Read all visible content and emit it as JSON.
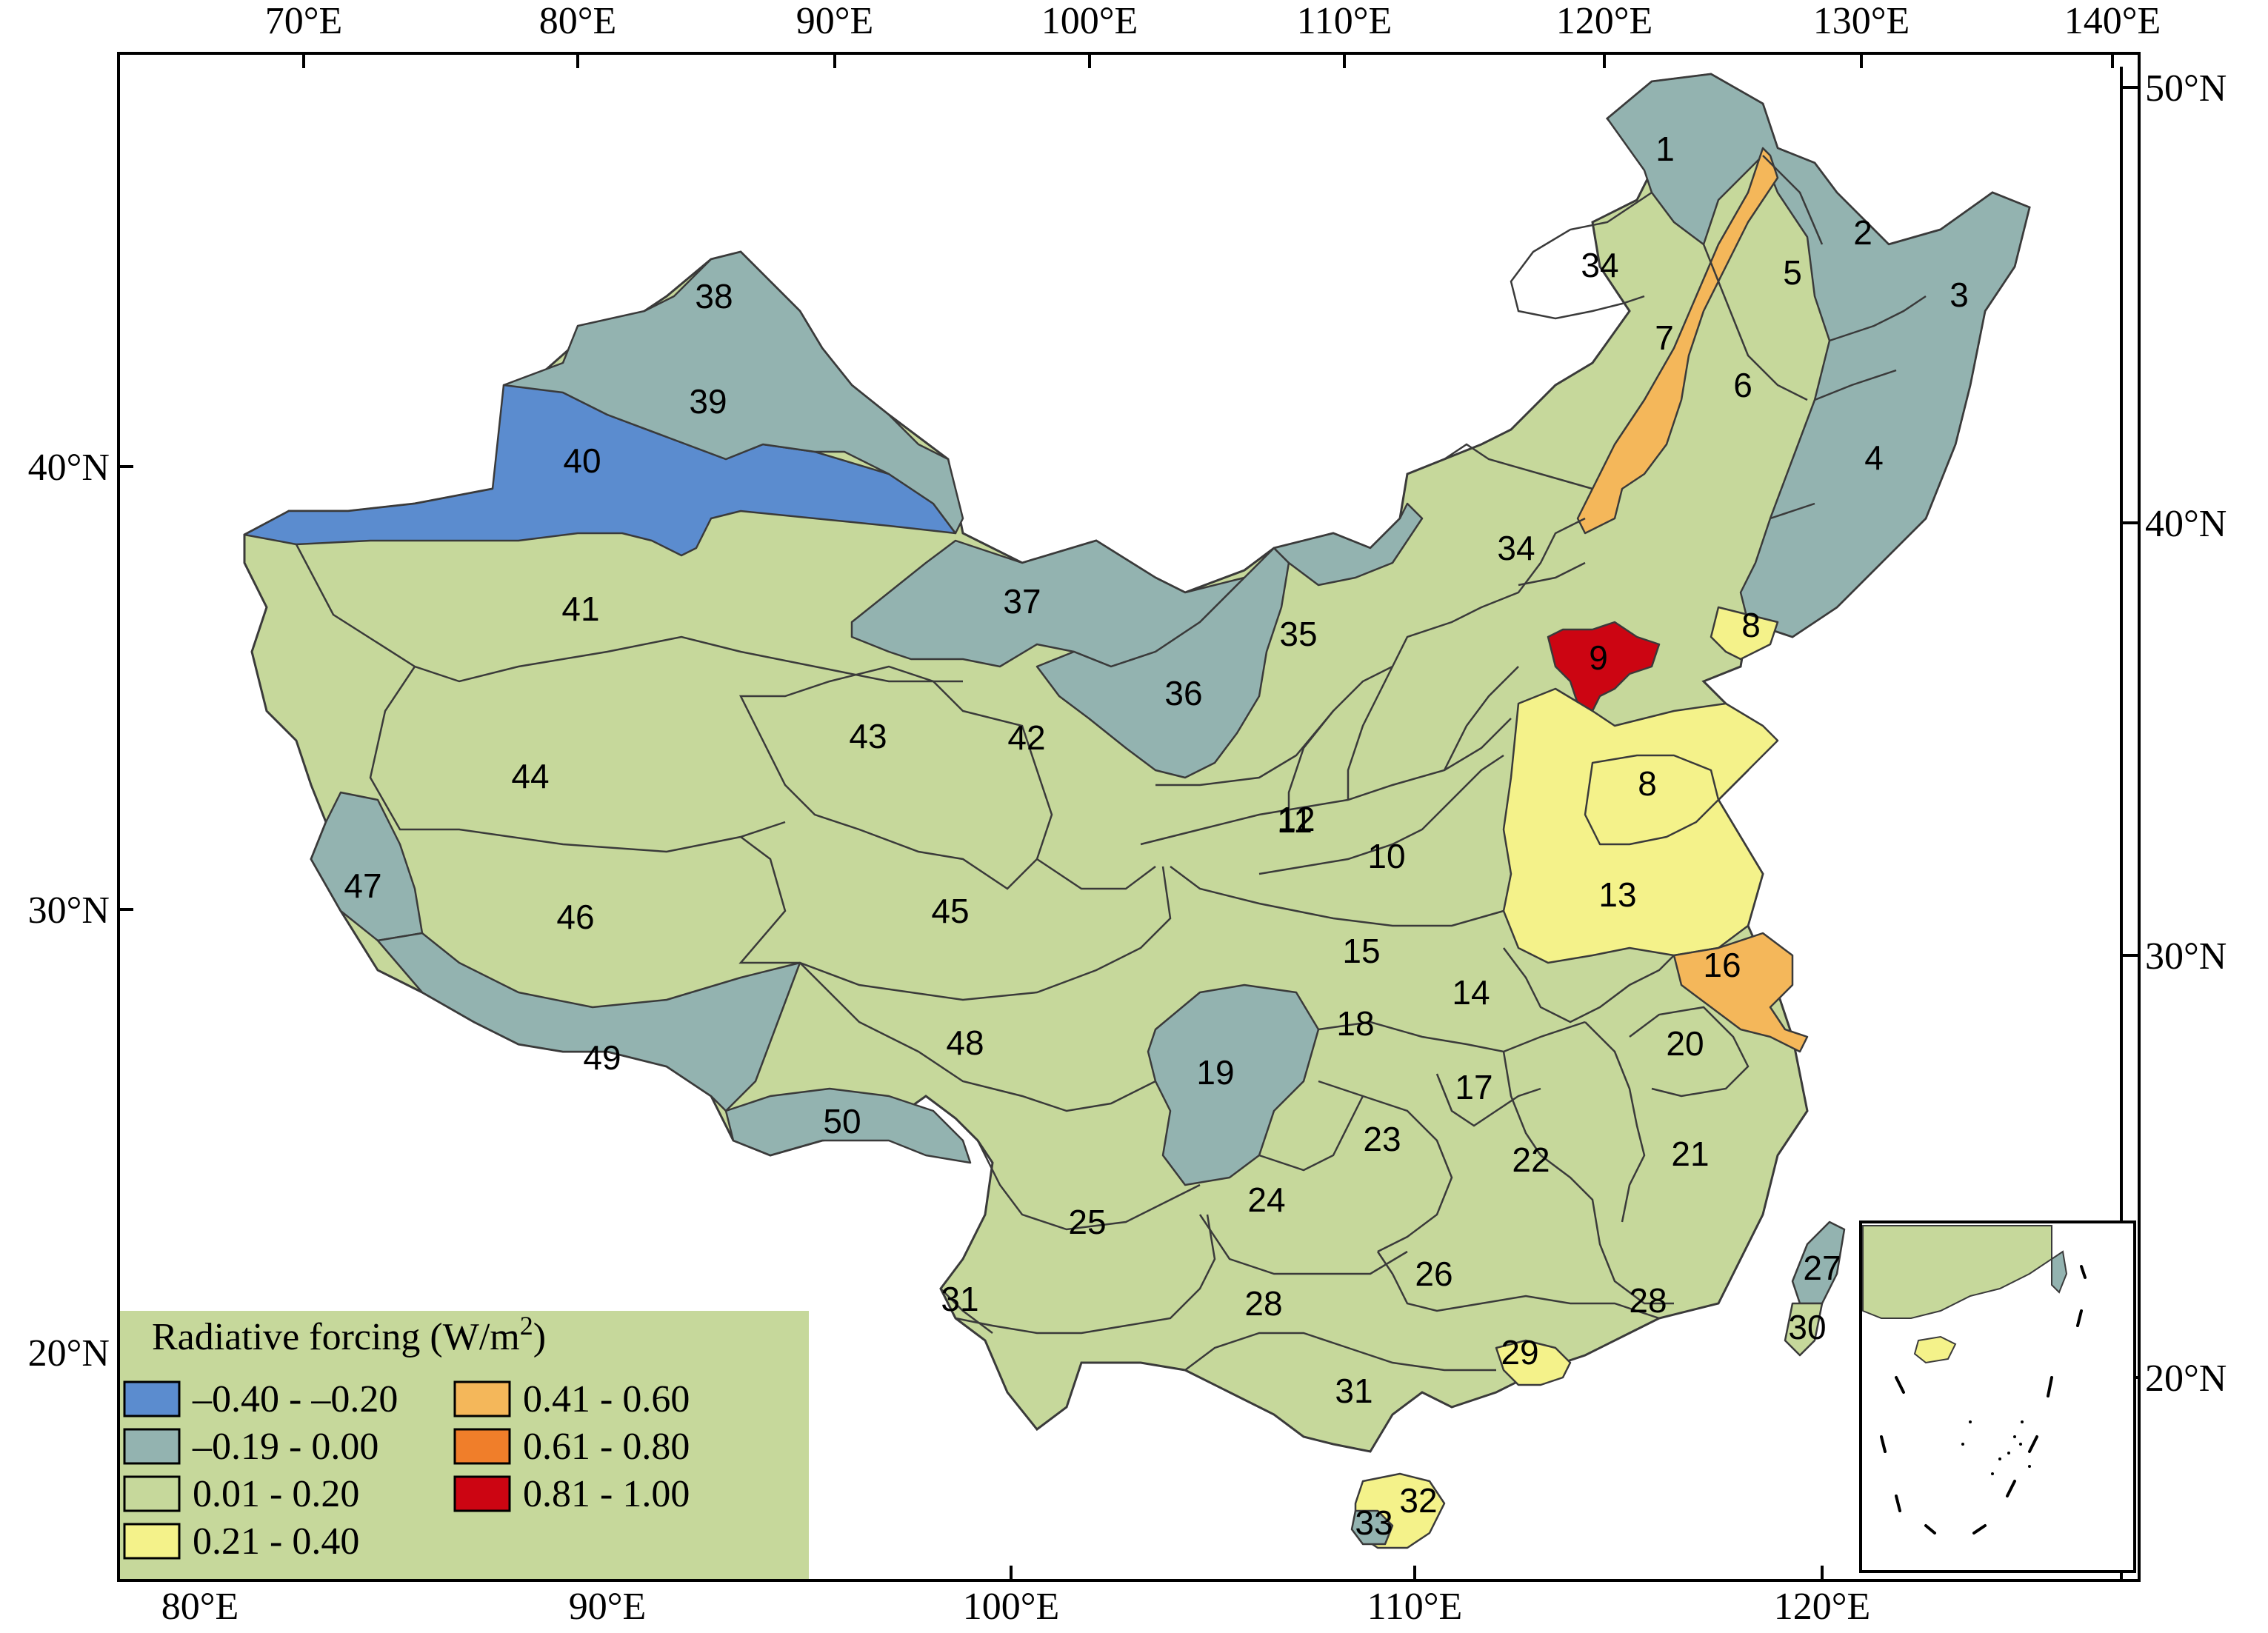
{
  "axes": {
    "top_longitudes": [
      "70°E",
      "80°E",
      "90°E",
      "100°E",
      "110°E",
      "120°E",
      "130°E",
      "140°E"
    ],
    "bottom_longitudes": [
      "80°E",
      "90°E",
      "100°E",
      "110°E",
      "120°E"
    ],
    "left_latitudes": [
      "40°N",
      "30°N",
      "20°N"
    ],
    "right_latitudes": [
      "50°N",
      "40°N",
      "30°N",
      "20°N"
    ]
  },
  "legend": {
    "title": "Radiative forcing (W/m",
    "title_superscript": "2",
    "title_suffix": ")",
    "items": [
      {
        "label": "–0.40 - –0.20",
        "color": "#5b8ccf"
      },
      {
        "label": "–0.19 - 0.00",
        "color": "#93b3b0"
      },
      {
        "label": "0.01 - 0.20",
        "color": "#c6d89b"
      },
      {
        "label": "0.21 - 0.40",
        "color": "#f4f28a"
      },
      {
        "label": "0.41 - 0.60",
        "color": "#f4b75a"
      },
      {
        "label": "0.61 - 0.80",
        "color": "#f07e2a"
      },
      {
        "label": "0.81 - 1.00",
        "color": "#cc0512"
      }
    ]
  },
  "regions": [
    {
      "label": "1",
      "class": 1
    },
    {
      "label": "2",
      "class": 1
    },
    {
      "label": "3",
      "class": 1
    },
    {
      "label": "4",
      "class": 1
    },
    {
      "label": "5",
      "class": 1
    },
    {
      "label": "6",
      "class": 2
    },
    {
      "label": "7",
      "class": 4
    },
    {
      "label": "8",
      "class": 3
    },
    {
      "label": "8",
      "class": 3
    },
    {
      "label": "9",
      "class": 6
    },
    {
      "label": "10",
      "class": 2
    },
    {
      "label": "11",
      "class": 2
    },
    {
      "label": "12",
      "class": 2
    },
    {
      "label": "13",
      "class": 3
    },
    {
      "label": "14",
      "class": 2
    },
    {
      "label": "15",
      "class": 2
    },
    {
      "label": "16",
      "class": 4
    },
    {
      "label": "17",
      "class": 2
    },
    {
      "label": "18",
      "class": 2
    },
    {
      "label": "19",
      "class": 1
    },
    {
      "label": "20",
      "class": 2
    },
    {
      "label": "21",
      "class": 2
    },
    {
      "label": "22",
      "class": 2
    },
    {
      "label": "23",
      "class": 2
    },
    {
      "label": "24",
      "class": 2
    },
    {
      "label": "25",
      "class": 2
    },
    {
      "label": "26",
      "class": 2
    },
    {
      "label": "27",
      "class": 1
    },
    {
      "label": "28",
      "class": 2
    },
    {
      "label": "28",
      "class": 2
    },
    {
      "label": "29",
      "class": 3
    },
    {
      "label": "30",
      "class": 2
    },
    {
      "label": "31",
      "class": 2
    },
    {
      "label": "31",
      "class": 2
    },
    {
      "label": "32",
      "class": 3
    },
    {
      "label": "33",
      "class": 1
    },
    {
      "label": "34",
      "class": 2
    },
    {
      "label": "34",
      "class": 2
    },
    {
      "label": "35",
      "class": 2
    },
    {
      "label": "36",
      "class": 1
    },
    {
      "label": "37",
      "class": 1
    },
    {
      "label": "38",
      "class": 1
    },
    {
      "label": "39",
      "class": 1
    },
    {
      "label": "40",
      "class": 0
    },
    {
      "label": "41",
      "class": 2
    },
    {
      "label": "42",
      "class": 2
    },
    {
      "label": "43",
      "class": 2
    },
    {
      "label": "44",
      "class": 2
    },
    {
      "label": "45",
      "class": 2
    },
    {
      "label": "46",
      "class": 2
    },
    {
      "label": "47",
      "class": 1
    },
    {
      "label": "48",
      "class": 2
    },
    {
      "label": "49",
      "class": 1
    },
    {
      "label": "50",
      "class": 1
    }
  ]
}
